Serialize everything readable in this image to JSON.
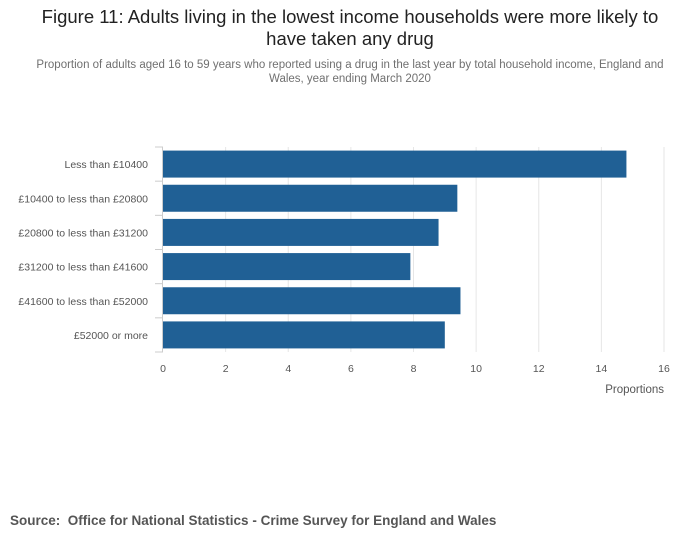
{
  "header": {
    "title": "Figure 11: Adults living in the lowest income households were more likely to have taken any drug",
    "subtitle": "Proportion of adults aged 16 to 59 years who reported using a drug in the last year by total household income, England and Wales, year ending March 2020"
  },
  "colors": {
    "bar": "#206095",
    "grid": "#e6e6e6",
    "axis": "#cccccc",
    "text": "#555555"
  },
  "chart_data": {
    "type": "bar",
    "orientation": "horizontal",
    "title": "Figure 11: Adults living in the lowest income households were more likely to have taken any drug",
    "subtitle": "Proportion of adults aged 16 to 59 years who reported using a drug in the last year by total household income, England and Wales, year ending March 2020",
    "categories": [
      "Less than £10400",
      "£10400 to less than £20800",
      "£20800 to less than £31200",
      "£31200 to less than £41600",
      "£41600 to less than £52000",
      "£52000 or more"
    ],
    "values": [
      14.8,
      9.4,
      8.8,
      7.9,
      9.5,
      9.0
    ],
    "xlabel": "Proportions",
    "ylabel": "",
    "xlim": [
      0,
      16
    ],
    "ticks": [
      0,
      2,
      4,
      6,
      8,
      10,
      12,
      14,
      16
    ],
    "grid": true,
    "legend": "none"
  },
  "source": {
    "label": "Source:",
    "text": "Office for National Statistics - Crime Survey for England and Wales"
  }
}
